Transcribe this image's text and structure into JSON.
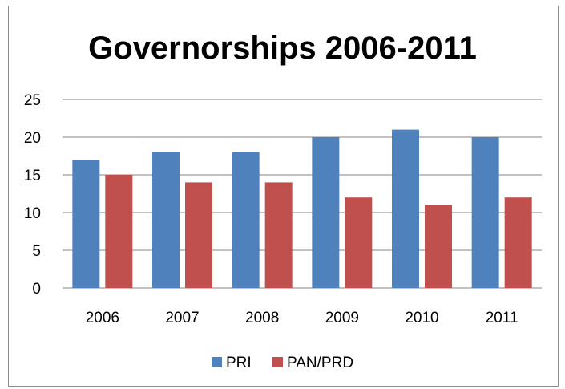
{
  "chart_data": {
    "type": "bar",
    "title": "Governorships 2006-2011",
    "categories": [
      "2006",
      "2007",
      "2008",
      "2009",
      "2010",
      "2011"
    ],
    "series": [
      {
        "name": "PRI",
        "values": [
          17,
          18,
          18,
          20,
          21,
          20
        ],
        "color": "#4f81bd"
      },
      {
        "name": "PAN/PRD",
        "values": [
          15,
          14,
          14,
          12,
          11,
          12
        ],
        "color": "#c0504d"
      }
    ],
    "ylim": [
      0,
      25
    ],
    "yticks": [
      0,
      5,
      10,
      15,
      20,
      25
    ],
    "grid": true,
    "legend": "bottom"
  }
}
